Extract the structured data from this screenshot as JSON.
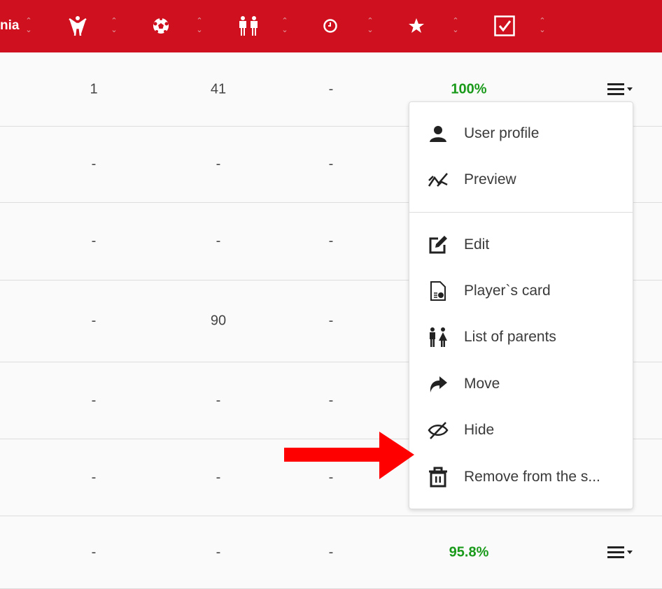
{
  "header": {
    "first_col_partial": "nia",
    "columns": [
      {
        "icon": "person-arms-up-icon"
      },
      {
        "icon": "soccer-ball-icon"
      },
      {
        "icon": "two-people-icon"
      },
      {
        "icon": "clock-icon"
      },
      {
        "icon": "star-icon"
      },
      {
        "icon": "checkbox-checked-icon"
      }
    ],
    "sort_icon": "sort-up-down-icon",
    "color": "#CF101F"
  },
  "rows": [
    {
      "c1": "1",
      "c2": "41",
      "c3": "-",
      "pct": "100%"
    },
    {
      "c1": "-",
      "c2": "-",
      "c3": "-",
      "pct": ""
    },
    {
      "c1": "-",
      "c2": "-",
      "c3": "-",
      "pct": ""
    },
    {
      "c1": "-",
      "c2": "90",
      "c3": "-",
      "pct": ""
    },
    {
      "c1": "-",
      "c2": "-",
      "c3": "-",
      "pct": ""
    },
    {
      "c1": "-",
      "c2": "-",
      "c3": "-",
      "pct": ""
    },
    {
      "c1": "-",
      "c2": "-",
      "c3": "-",
      "pct": "95.8%"
    }
  ],
  "menu": {
    "items": [
      {
        "label": "User profile",
        "icon": "user-icon"
      },
      {
        "label": "Preview",
        "icon": "chart-line-icon"
      },
      {
        "label": "Edit",
        "icon": "edit-icon"
      },
      {
        "label": "Player`s card",
        "icon": "document-chart-icon"
      },
      {
        "label": "List of parents",
        "icon": "parents-icon"
      },
      {
        "label": "Move",
        "icon": "share-arrow-icon"
      },
      {
        "label": "Hide",
        "icon": "eye-slash-icon"
      },
      {
        "label": "Remove from the s...",
        "icon": "trash-icon"
      }
    ]
  },
  "colors": {
    "percent": "#1a9a1a",
    "arrow": "#ff0000"
  }
}
